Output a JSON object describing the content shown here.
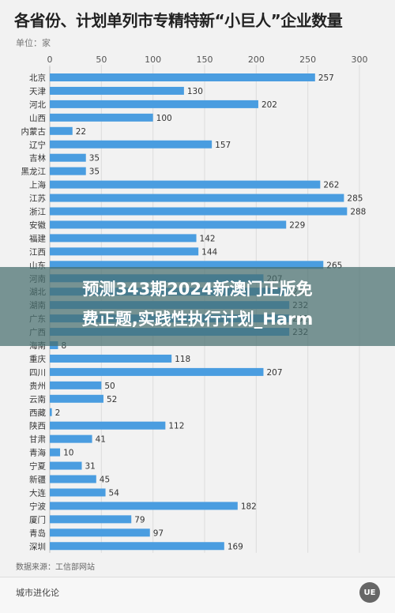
{
  "title": "各省份、计划单列市专精特新“小巨人”企业数量",
  "unit_label": "单位：家",
  "overlay_text": [
    "预测343期2024新澳门正版免",
    "费正题,实践性执行计划_Harm"
  ],
  "source": "数据来源：工信部网站",
  "brand": "城市进化论",
  "logo_text": "UE",
  "colors": {
    "bar": "#4a9de0",
    "axis_text": "#555555"
  },
  "chart_data": {
    "type": "bar",
    "orientation": "horizontal",
    "title": "各省份、计划单列市专精特新“小巨人”企业数量",
    "xlabel": "",
    "ylabel": "",
    "xlim": [
      0,
      300
    ],
    "xticks": [
      0,
      50,
      100,
      150,
      200,
      250,
      300
    ],
    "grid": true,
    "categories": [
      "北京",
      "天津",
      "河北",
      "山西",
      "内蒙古",
      "辽宁",
      "吉林",
      "黑龙江",
      "上海",
      "江苏",
      "浙江",
      "安徽",
      "福建",
      "江西",
      "山东",
      "河南",
      "湖北",
      "湖南",
      "广东",
      "广西",
      "海南",
      "重庆",
      "四川",
      "贵州",
      "云南",
      "西藏",
      "陕西",
      "甘肃",
      "青海",
      "宁夏",
      "新疆",
      "大连",
      "宁波",
      "厦门",
      "青岛",
      "深圳"
    ],
    "values": [
      257,
      130,
      202,
      100,
      22,
      157,
      35,
      35,
      262,
      285,
      288,
      229,
      142,
      144,
      265,
      207,
      232,
      232,
      232,
      232,
      8,
      118,
      207,
      50,
      52,
      2,
      112,
      41,
      10,
      31,
      45,
      54,
      182,
      79,
      97,
      169
    ],
    "labels": [
      "257",
      "130",
      "202",
      "100",
      "22",
      "157",
      "35",
      "35",
      "262",
      "285",
      "288",
      "229",
      "142",
      "144",
      "265",
      "207",
      "232",
      "232",
      "232",
      "232",
      "8",
      "118",
      "207",
      "50",
      "52",
      "2",
      "112",
      "41",
      "10",
      "31",
      "45",
      "54",
      "182",
      "79",
      "97",
      "169"
    ]
  }
}
